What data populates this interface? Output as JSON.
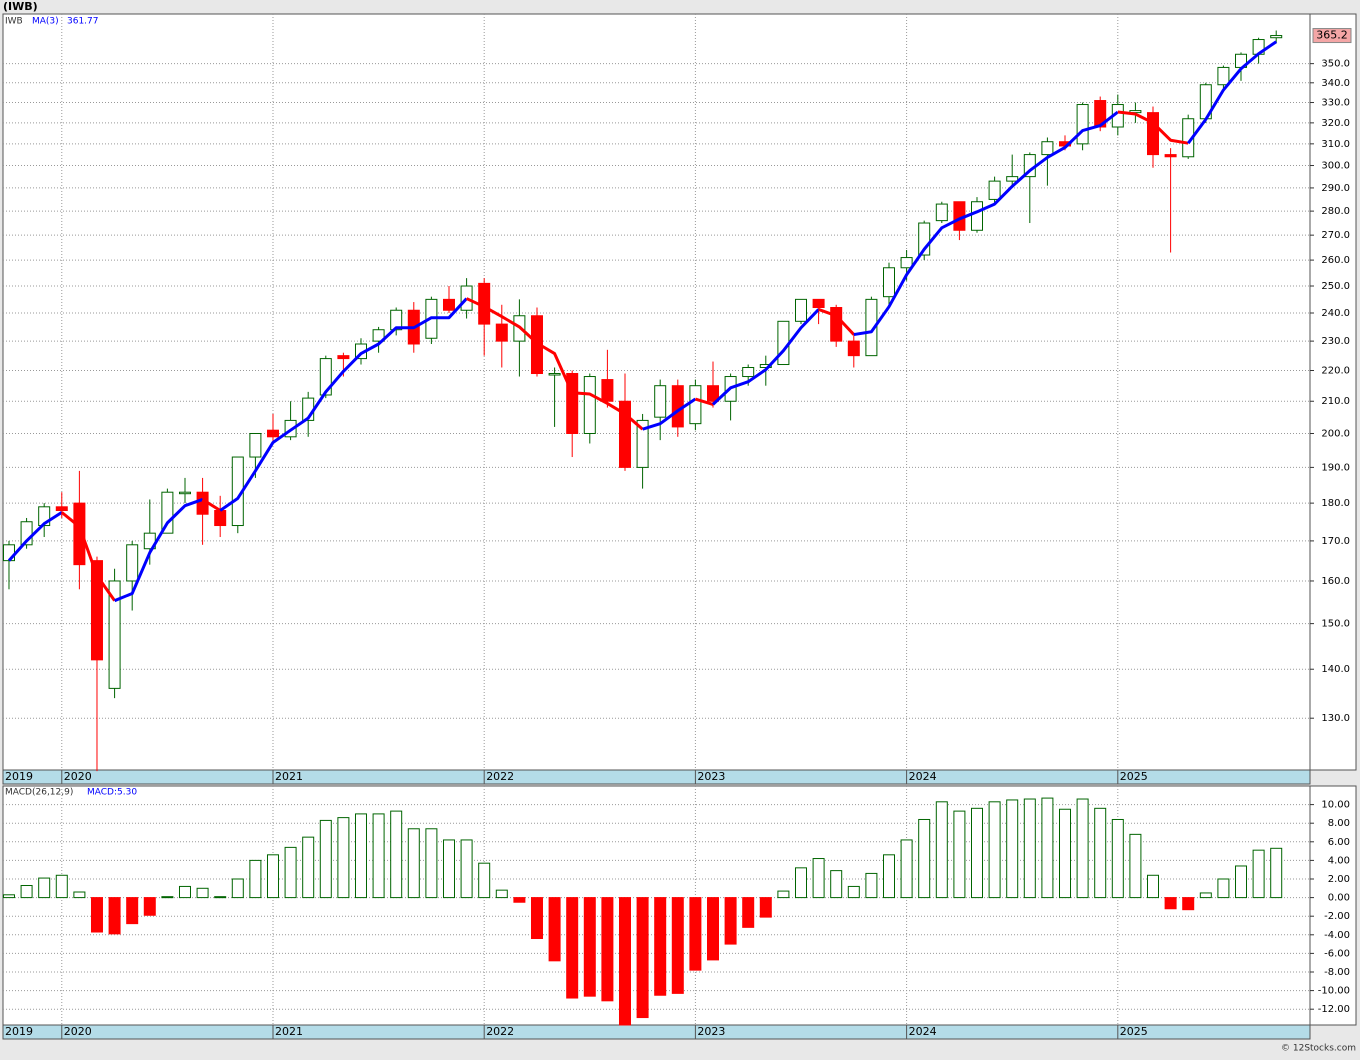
{
  "chart_data": [
    {
      "type": "candlestick",
      "title": "(IWB)",
      "symbol": "IWB",
      "log_scale": true,
      "grid": true,
      "up_color": "#006400",
      "down_color": "#ff0000",
      "last_label_color": "#f4a6a6",
      "xlim": [
        -0.34,
        73.92
      ],
      "xticks": [
        {
          "value": -0.34,
          "label": "2019"
        },
        {
          "value": 3,
          "label": "2020"
        },
        {
          "value": 15,
          "label": "2021"
        },
        {
          "value": 27,
          "label": "2022"
        },
        {
          "value": 39,
          "label": "2023"
        },
        {
          "value": 51,
          "label": "2024"
        },
        {
          "value": 63,
          "label": "2025"
        }
      ],
      "ylim": [
        120.2,
        377.3
      ],
      "yticks": [
        {
          "value": 130,
          "label": "130.0"
        },
        {
          "value": 140,
          "label": "140.0"
        },
        {
          "value": 150,
          "label": "150.0"
        },
        {
          "value": 160,
          "label": "160.0"
        },
        {
          "value": 170,
          "label": "170.0"
        },
        {
          "value": 180,
          "label": "180.0"
        },
        {
          "value": 190,
          "label": "190.0"
        },
        {
          "value": 200,
          "label": "200.0"
        },
        {
          "value": 210,
          "label": "210.0"
        },
        {
          "value": 220,
          "label": "220.0"
        },
        {
          "value": 230,
          "label": "230.0"
        },
        {
          "value": 240,
          "label": "240.0"
        },
        {
          "value": 250,
          "label": "250.0"
        },
        {
          "value": 260,
          "label": "260.0"
        },
        {
          "value": 270,
          "label": "270.0"
        },
        {
          "value": 280,
          "label": "280.0"
        },
        {
          "value": 290,
          "label": "290.0"
        },
        {
          "value": 300,
          "label": "300.0"
        },
        {
          "value": 310,
          "label": "310.0"
        },
        {
          "value": 320,
          "label": "320.0"
        },
        {
          "value": 330,
          "label": "330.0"
        },
        {
          "value": 340,
          "label": "340.0"
        },
        {
          "value": 350,
          "label": "350.0"
        }
      ],
      "open": [
        165,
        169,
        174,
        179,
        180,
        165,
        136,
        160,
        168,
        172,
        183,
        183,
        178,
        174,
        193,
        201,
        199,
        204,
        212,
        225,
        224,
        230,
        234,
        241,
        231,
        245,
        241,
        251,
        236,
        230,
        239,
        219,
        219,
        200,
        217,
        210,
        190,
        205,
        215,
        203,
        215,
        210,
        218,
        221,
        222,
        237,
        245,
        242,
        230,
        225,
        246,
        257,
        262,
        276,
        284,
        272,
        285,
        293,
        295,
        305,
        311,
        310,
        331,
        318,
        325,
        325,
        305,
        304,
        322,
        339,
        348,
        355,
        364
      ],
      "high": [
        170,
        176,
        180,
        183,
        189,
        166,
        163,
        170,
        181,
        184,
        187,
        187,
        182,
        193,
        200,
        206,
        210,
        213,
        225,
        226,
        231,
        235,
        242,
        244,
        246,
        250,
        253,
        253,
        243,
        245,
        242,
        221,
        220,
        219,
        227,
        219,
        206,
        217,
        217,
        217,
        223,
        219,
        222,
        225,
        237,
        245,
        245,
        243,
        233,
        246,
        259,
        264,
        276,
        284,
        284,
        286,
        295,
        305,
        306,
        313,
        314,
        330,
        333,
        334,
        330,
        328,
        308,
        324,
        340,
        349,
        356,
        364,
        368
      ],
      "low": [
        158,
        168,
        171,
        176,
        158,
        120,
        134,
        153,
        164,
        172,
        180,
        169,
        171,
        172,
        187,
        197,
        198,
        199,
        211,
        218,
        222,
        226,
        232,
        226,
        229,
        240,
        238,
        225,
        221,
        218,
        218,
        202,
        193,
        197,
        208,
        189,
        184,
        198,
        199,
        201,
        208,
        204,
        215,
        215,
        222,
        236,
        236,
        228,
        221,
        225,
        243,
        252,
        260,
        275,
        268,
        271,
        283,
        290,
        275,
        291,
        307,
        307,
        316,
        314,
        320,
        299,
        263,
        303,
        320,
        337,
        341,
        350,
        361
      ],
      "close": [
        169,
        175,
        179,
        178,
        164,
        142,
        160,
        169,
        172,
        183,
        183,
        177,
        174,
        193,
        200,
        199,
        204,
        211,
        224,
        224,
        229,
        234,
        241,
        229,
        245,
        241,
        250,
        236,
        230,
        239,
        219,
        219,
        200,
        218,
        210,
        190,
        204,
        215,
        202,
        215,
        210,
        218,
        221,
        222,
        237,
        245,
        242,
        230,
        225,
        245,
        257,
        261,
        275,
        283,
        272,
        284,
        293,
        295,
        305,
        311,
        309,
        329,
        318,
        329,
        326,
        305,
        304,
        322,
        339,
        348,
        355,
        363,
        365.2
      ],
      "ma": {
        "name": "MA(3)",
        "color": "#0000ff",
        "down_color": "#ff0000",
        "values": [
          165,
          170,
          174.5,
          177.5,
          173.7,
          161.3,
          155.3,
          157,
          167,
          174.7,
          179.3,
          181,
          178,
          181.3,
          189,
          197.3,
          201,
          204.7,
          213,
          219.7,
          225.7,
          229,
          234.7,
          234.7,
          238.3,
          238.3,
          245.3,
          242.3,
          238.7,
          235,
          229.3,
          225.7,
          212.7,
          212.3,
          209.3,
          206,
          201.3,
          203,
          207,
          210.7,
          209,
          214.3,
          216.3,
          220.3,
          226.7,
          234.7,
          241.3,
          239,
          232.3,
          233.3,
          242.3,
          254.3,
          264.3,
          273,
          276.7,
          279.7,
          283,
          290.7,
          297.7,
          303.7,
          308.3,
          316.3,
          318.7,
          325.3,
          324.3,
          320,
          311.7,
          310.3,
          321.7,
          336.3,
          347.3,
          355.3,
          361.77
        ]
      }
    },
    {
      "type": "bar",
      "title": "MACD(26,12,9)",
      "last_label": "MACD:5.30",
      "grid": true,
      "up_color": "#006400",
      "down_color": "#ff0000",
      "xlim": [
        -0.34,
        73.92
      ],
      "xticks": [
        {
          "value": -0.34,
          "label": "2019"
        },
        {
          "value": 3,
          "label": "2020"
        },
        {
          "value": 15,
          "label": "2021"
        },
        {
          "value": 27,
          "label": "2022"
        },
        {
          "value": 39,
          "label": "2023"
        },
        {
          "value": 51,
          "label": "2024"
        },
        {
          "value": 63,
          "label": "2025"
        }
      ],
      "ylim": [
        -13.7,
        12.0
      ],
      "yticks": [
        {
          "value": 10,
          "label": "10.00"
        },
        {
          "value": 8,
          "label": "8.00"
        },
        {
          "value": 6,
          "label": "6.00"
        },
        {
          "value": 4,
          "label": "4.00"
        },
        {
          "value": 2,
          "label": "2.00"
        },
        {
          "value": 0,
          "label": "0.00"
        },
        {
          "value": -2,
          "label": "-2.00"
        },
        {
          "value": -4,
          "label": "-4.00"
        },
        {
          "value": -6,
          "label": "-6.00"
        },
        {
          "value": -8,
          "label": "-8.00"
        },
        {
          "value": -10,
          "label": "-10.00"
        },
        {
          "value": -12,
          "label": "-12.00"
        }
      ],
      "values": [
        0.3,
        1.3,
        2.1,
        2.4,
        0.6,
        -3.7,
        -3.9,
        -2.8,
        -1.9,
        0.1,
        1.2,
        1.0,
        0.1,
        2.0,
        4.0,
        4.6,
        5.4,
        6.5,
        8.3,
        8.6,
        9.0,
        9.0,
        9.3,
        7.4,
        7.4,
        6.2,
        6.2,
        3.7,
        0.8,
        -0.5,
        -4.4,
        -6.8,
        -10.8,
        -10.6,
        -11.1,
        -13.7,
        -12.9,
        -10.5,
        -10.3,
        -7.8,
        -6.7,
        -5.0,
        -3.2,
        -2.1,
        0.7,
        3.2,
        4.2,
        2.9,
        1.2,
        2.6,
        4.6,
        6.2,
        8.4,
        10.3,
        9.3,
        9.6,
        10.3,
        10.5,
        10.6,
        10.7,
        9.5,
        10.6,
        9.6,
        8.4,
        6.8,
        2.4,
        -1.2,
        -1.3,
        0.5,
        2.0,
        3.4,
        5.1,
        5.3
      ]
    }
  ],
  "credit": "© 12Stocks.com"
}
